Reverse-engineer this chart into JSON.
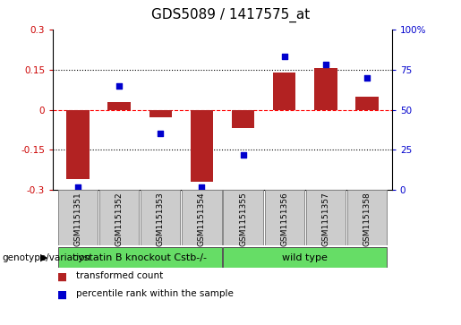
{
  "title": "GDS5089 / 1417575_at",
  "samples": [
    "GSM1151351",
    "GSM1151352",
    "GSM1151353",
    "GSM1151354",
    "GSM1151355",
    "GSM1151356",
    "GSM1151357",
    "GSM1151358"
  ],
  "bar_values": [
    -0.26,
    0.03,
    -0.03,
    -0.27,
    -0.07,
    0.14,
    0.155,
    0.05
  ],
  "percentile_values": [
    2,
    65,
    35,
    2,
    22,
    83,
    78,
    70
  ],
  "bar_color": "#B22222",
  "dot_color": "#0000CD",
  "ylim_left": [
    -0.3,
    0.3
  ],
  "ylim_right": [
    0,
    100
  ],
  "yticks_left": [
    -0.3,
    -0.15,
    0.0,
    0.15,
    0.3
  ],
  "yticks_right": [
    0,
    25,
    50,
    75,
    100
  ],
  "ytick_labels_left": [
    "-0.3",
    "-0.15",
    "0",
    "0.15",
    "0.3"
  ],
  "ytick_labels_right": [
    "0",
    "25",
    "50",
    "75",
    "100%"
  ],
  "hlines": [
    0.15,
    0.0,
    -0.15
  ],
  "hline_styles": [
    "dotted",
    "dashed",
    "dotted"
  ],
  "hline_colors": [
    "black",
    "red",
    "black"
  ],
  "groups": [
    {
      "label": "cystatin B knockout Cstb-/-",
      "start": 0,
      "end": 3,
      "color": "#66DD66"
    },
    {
      "label": "wild type",
      "start": 4,
      "end": 7,
      "color": "#66DD66"
    }
  ],
  "group_row_label": "genotype/variation",
  "legend_items": [
    {
      "label": "transformed count",
      "color": "#B22222"
    },
    {
      "label": "percentile rank within the sample",
      "color": "#0000CD"
    }
  ],
  "title_fontsize": 11,
  "tick_fontsize": 7.5,
  "sample_fontsize": 6.5,
  "group_fontsize": 8,
  "legend_fontsize": 7.5,
  "bar_width": 0.55,
  "bg_color": "#FFFFFF",
  "sample_box_color": "#CCCCCC",
  "plot_bg": "#FFFFFF"
}
